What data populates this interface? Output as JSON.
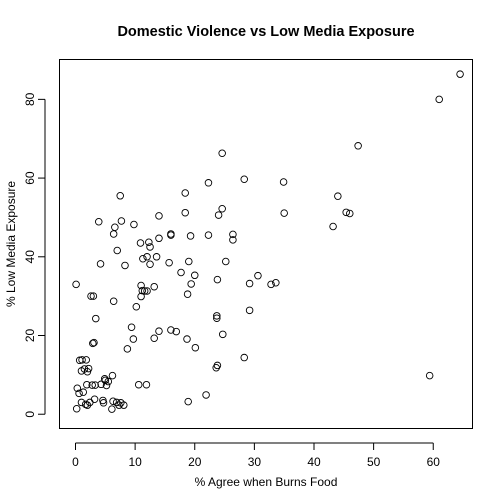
{
  "chart_data": {
    "type": "scatter",
    "title": "Domestic Violence vs Low Media Exposure",
    "xlabel": "% Agree when Burns Food",
    "ylabel": "% Low Media Exposure",
    "xlim": [
      -2.6,
      66.5
    ],
    "ylim": [
      -3.5,
      90.0
    ],
    "xticks": [
      "0",
      "10",
      "20",
      "30",
      "40",
      "50",
      "60"
    ],
    "yticks": [
      "0",
      "20",
      "40",
      "60",
      "80"
    ],
    "grid": false,
    "points": [
      [
        64.5,
        86.4
      ],
      [
        61.0,
        80.0
      ],
      [
        59.4,
        9.8
      ],
      [
        47.4,
        68.2
      ],
      [
        46.0,
        51.0
      ],
      [
        45.4,
        51.3
      ],
      [
        44.0,
        55.4
      ],
      [
        43.2,
        47.7
      ],
      [
        34.9,
        59.0
      ],
      [
        35.0,
        51.1
      ],
      [
        33.6,
        33.4
      ],
      [
        32.8,
        33.0
      ],
      [
        30.6,
        35.2
      ],
      [
        29.2,
        33.2
      ],
      [
        29.2,
        26.4
      ],
      [
        28.3,
        59.7
      ],
      [
        28.3,
        14.4
      ],
      [
        26.4,
        45.7
      ],
      [
        26.4,
        44.3
      ],
      [
        25.2,
        38.8
      ],
      [
        24.6,
        66.3
      ],
      [
        24.6,
        52.2
      ],
      [
        24.0,
        50.6
      ],
      [
        24.7,
        20.3
      ],
      [
        23.8,
        34.2
      ],
      [
        23.7,
        25.0
      ],
      [
        23.7,
        24.4
      ],
      [
        23.8,
        12.4
      ],
      [
        23.6,
        11.8
      ],
      [
        22.3,
        58.8
      ],
      [
        22.3,
        45.5
      ],
      [
        21.9,
        4.9
      ],
      [
        20.0,
        35.3
      ],
      [
        20.1,
        16.9
      ],
      [
        19.4,
        33.1
      ],
      [
        19.3,
        45.3
      ],
      [
        19.0,
        38.8
      ],
      [
        18.8,
        30.5
      ],
      [
        18.7,
        19.1
      ],
      [
        18.9,
        3.2
      ],
      [
        18.4,
        56.2
      ],
      [
        18.4,
        51.2
      ],
      [
        17.7,
        36.0
      ],
      [
        16.9,
        21.0
      ],
      [
        16.0,
        21.4
      ],
      [
        16.0,
        45.5
      ],
      [
        16.0,
        45.8
      ],
      [
        15.7,
        38.5
      ],
      [
        14.0,
        50.4
      ],
      [
        14.0,
        44.7
      ],
      [
        14.0,
        21.1
      ],
      [
        13.6,
        40.0
      ],
      [
        13.2,
        32.4
      ],
      [
        13.2,
        19.3
      ],
      [
        12.5,
        42.5
      ],
      [
        12.5,
        38.1
      ],
      [
        12.3,
        43.7
      ],
      [
        12.0,
        40.0
      ],
      [
        12.0,
        31.3
      ],
      [
        11.9,
        7.5
      ],
      [
        11.6,
        31.3
      ],
      [
        11.3,
        39.5
      ],
      [
        11.2,
        31.4
      ],
      [
        11.0,
        32.7
      ],
      [
        11.0,
        29.9
      ],
      [
        10.9,
        43.5
      ],
      [
        10.6,
        7.5
      ],
      [
        10.2,
        27.3
      ],
      [
        9.8,
        48.2
      ],
      [
        9.7,
        19.1
      ],
      [
        9.4,
        22.1
      ],
      [
        8.7,
        16.6
      ],
      [
        8.3,
        37.8
      ],
      [
        7.7,
        49.1
      ],
      [
        7.5,
        55.5
      ],
      [
        7.0,
        41.6
      ],
      [
        6.6,
        47.5
      ],
      [
        6.4,
        45.8
      ],
      [
        6.4,
        28.7
      ],
      [
        6.3,
        3.3
      ],
      [
        6.2,
        9.8
      ],
      [
        6.1,
        1.3
      ],
      [
        5.5,
        8.3
      ],
      [
        5.2,
        7.3
      ],
      [
        4.9,
        9.0
      ],
      [
        4.6,
        3.5
      ],
      [
        4.2,
        38.2
      ],
      [
        3.9,
        48.9
      ],
      [
        3.4,
        24.3
      ],
      [
        3.3,
        7.4
      ],
      [
        3.2,
        3.8
      ],
      [
        3.1,
        18.2
      ],
      [
        3.0,
        30.0
      ],
      [
        2.9,
        18.0
      ],
      [
        2.8,
        7.4
      ],
      [
        2.4,
        3.0
      ],
      [
        2.2,
        11.6
      ],
      [
        2.0,
        10.8
      ],
      [
        2.0,
        2.3
      ],
      [
        1.9,
        7.5
      ],
      [
        1.8,
        13.8
      ],
      [
        1.7,
        2.5
      ],
      [
        1.5,
        11.5
      ],
      [
        1.3,
        5.6
      ],
      [
        1.1,
        13.8
      ],
      [
        1.0,
        11.0
      ],
      [
        1.0,
        3.0
      ],
      [
        0.7,
        13.7
      ],
      [
        0.6,
        5.3
      ],
      [
        0.3,
        6.6
      ],
      [
        0.2,
        1.4
      ],
      [
        0.1,
        33.0
      ],
      [
        4.7,
        2.9
      ],
      [
        5.0,
        8.6
      ],
      [
        4.3,
        7.6
      ],
      [
        7.6,
        2.9
      ],
      [
        7.3,
        2.3
      ],
      [
        8.1,
        2.3
      ],
      [
        6.9,
        3.0
      ],
      [
        2.6,
        30.0
      ]
    ]
  }
}
